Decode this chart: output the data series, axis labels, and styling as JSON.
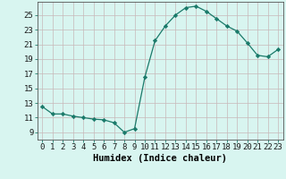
{
  "x": [
    0,
    1,
    2,
    3,
    4,
    5,
    6,
    7,
    8,
    9,
    10,
    11,
    12,
    13,
    14,
    15,
    16,
    17,
    18,
    19,
    20,
    21,
    22,
    23
  ],
  "y": [
    12.5,
    11.5,
    11.5,
    11.2,
    11.0,
    10.8,
    10.7,
    10.3,
    9.0,
    9.5,
    16.5,
    21.5,
    23.5,
    25.0,
    26.0,
    26.2,
    25.5,
    24.5,
    23.5,
    22.8,
    21.2,
    19.5,
    19.3,
    20.3
  ],
  "line_color": "#1a7a6a",
  "marker": "D",
  "marker_size": 2.2,
  "bg_color": "#d8f5f0",
  "grid_color_v": "#c8b8b8",
  "grid_color_h": "#c8b8b8",
  "xlabel": "Humidex (Indice chaleur)",
  "xlim": [
    -0.5,
    23.5
  ],
  "ylim": [
    8.0,
    26.8
  ],
  "yticks": [
    9,
    11,
    13,
    15,
    17,
    19,
    21,
    23,
    25
  ],
  "xticks": [
    0,
    1,
    2,
    3,
    4,
    5,
    6,
    7,
    8,
    9,
    10,
    11,
    12,
    13,
    14,
    15,
    16,
    17,
    18,
    19,
    20,
    21,
    22,
    23
  ],
  "tick_fontsize": 6.5,
  "label_fontsize": 7.5
}
